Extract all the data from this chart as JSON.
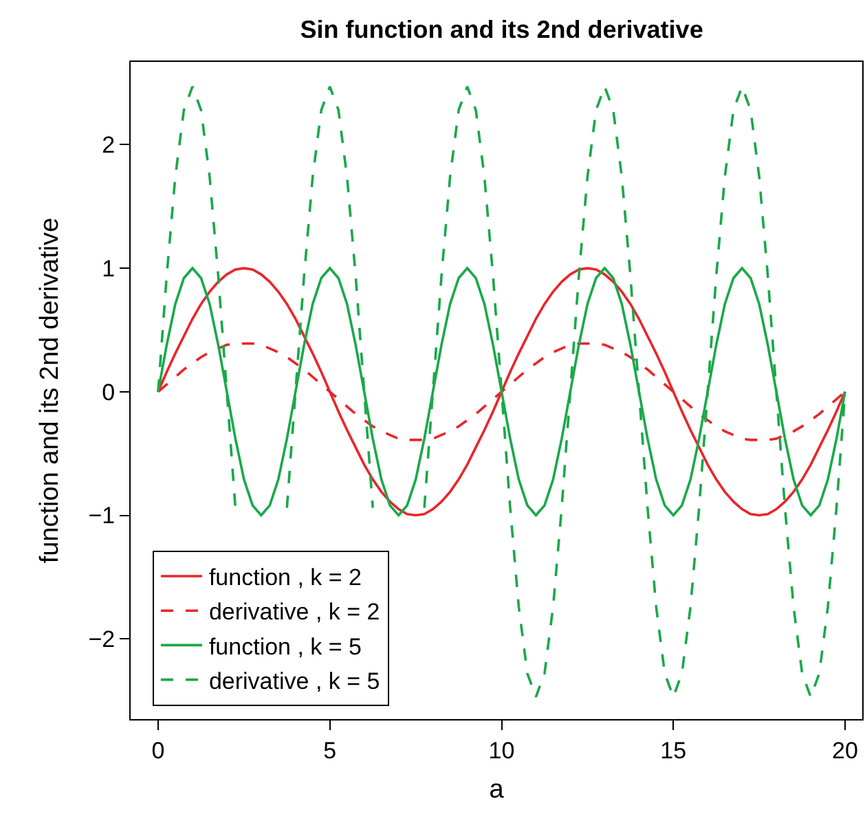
{
  "chart_data": {
    "type": "line",
    "title": "Sin function and its 2nd derivative",
    "xlabel": "a",
    "ylabel": "function and its 2nd derivative",
    "x": [
      0,
      0.25,
      0.5,
      0.75,
      1,
      1.25,
      1.5,
      1.75,
      2,
      2.25,
      2.5,
      2.75,
      3,
      3.25,
      3.5,
      3.75,
      4,
      4.25,
      4.5,
      4.75,
      5,
      5.25,
      5.5,
      5.75,
      6,
      6.25,
      6.5,
      6.75,
      7,
      7.25,
      7.5,
      7.75,
      8,
      8.25,
      8.5,
      8.75,
      9,
      9.25,
      9.5,
      9.75,
      10,
      10.25,
      10.5,
      10.75,
      11,
      11.25,
      11.5,
      11.75,
      12,
      12.25,
      12.5,
      12.75,
      13,
      13.25,
      13.5,
      13.75,
      14,
      14.25,
      14.5,
      14.75,
      15,
      15.25,
      15.5,
      15.75,
      16,
      16.25,
      16.5,
      16.75,
      17,
      17.25,
      17.5,
      17.75,
      18,
      18.25,
      18.5,
      18.75,
      19,
      19.25,
      19.5,
      19.75,
      20
    ],
    "series": [
      {
        "name": "function , k = 2",
        "color": "#e8262a",
        "line_style": "solid",
        "values": [
          0,
          0.16,
          0.31,
          0.45,
          0.59,
          0.71,
          0.81,
          0.89,
          0.95,
          0.99,
          1,
          0.99,
          0.95,
          0.89,
          0.81,
          0.71,
          0.59,
          0.45,
          0.31,
          0.16,
          0,
          -0.16,
          -0.31,
          -0.45,
          -0.59,
          -0.71,
          -0.81,
          -0.89,
          -0.95,
          -0.99,
          -1,
          -0.99,
          -0.95,
          -0.89,
          -0.81,
          -0.71,
          -0.59,
          -0.45,
          -0.31,
          -0.16,
          0,
          0.16,
          0.31,
          0.45,
          0.59,
          0.71,
          0.81,
          0.89,
          0.95,
          0.99,
          1,
          0.99,
          0.95,
          0.89,
          0.81,
          0.71,
          0.59,
          0.45,
          0.31,
          0.16,
          0,
          -0.16,
          -0.31,
          -0.45,
          -0.59,
          -0.71,
          -0.81,
          -0.89,
          -0.95,
          -0.99,
          -1,
          -0.99,
          -0.95,
          -0.89,
          -0.81,
          -0.71,
          -0.59,
          -0.45,
          -0.31,
          -0.16,
          0
        ]
      },
      {
        "name": "derivative , k = 2",
        "color": "#e8262a",
        "line_style": "dashed",
        "values": [
          0,
          0.06,
          0.12,
          0.18,
          0.23,
          0.28,
          0.32,
          0.35,
          0.38,
          0.39,
          0.39,
          0.39,
          0.38,
          0.35,
          0.32,
          0.28,
          0.23,
          0.18,
          0.12,
          0.06,
          0,
          -0.06,
          -0.12,
          -0.18,
          -0.23,
          -0.28,
          -0.32,
          -0.35,
          -0.38,
          -0.39,
          -0.39,
          -0.39,
          -0.38,
          -0.35,
          -0.32,
          -0.28,
          -0.23,
          -0.18,
          -0.12,
          -0.06,
          0,
          0.06,
          0.12,
          0.18,
          0.23,
          0.28,
          0.32,
          0.35,
          0.38,
          0.39,
          0.39,
          0.39,
          0.38,
          0.35,
          0.32,
          0.28,
          0.23,
          0.18,
          0.12,
          0.06,
          0,
          -0.06,
          -0.12,
          -0.18,
          -0.23,
          -0.28,
          -0.32,
          -0.35,
          -0.38,
          -0.39,
          -0.39,
          -0.39,
          -0.38,
          -0.35,
          -0.32,
          -0.28,
          -0.23,
          -0.18,
          -0.12,
          -0.06,
          0
        ]
      },
      {
        "name": "function , k = 5",
        "color": "#1aa84a",
        "line_style": "solid",
        "values": [
          0,
          0.38,
          0.71,
          0.92,
          1,
          0.92,
          0.71,
          0.38,
          0,
          -0.38,
          -0.71,
          -0.92,
          -1,
          -0.92,
          -0.71,
          -0.38,
          0,
          0.38,
          0.71,
          0.92,
          1,
          0.92,
          0.71,
          0.38,
          0,
          -0.38,
          -0.71,
          -0.92,
          -1,
          -0.92,
          -0.71,
          -0.38,
          0,
          0.38,
          0.71,
          0.92,
          1,
          0.92,
          0.71,
          0.38,
          0,
          -0.38,
          -0.71,
          -0.92,
          -1,
          -0.92,
          -0.71,
          -0.38,
          0,
          0.38,
          0.71,
          0.92,
          1,
          0.92,
          0.71,
          0.38,
          0,
          -0.38,
          -0.71,
          -0.92,
          -1,
          -0.92,
          -0.71,
          -0.38,
          0,
          0.38,
          0.71,
          0.92,
          1,
          0.92,
          0.71,
          0.38,
          0,
          -0.38,
          -0.71,
          -0.92,
          -1,
          -0.92,
          -0.71,
          -0.38,
          0
        ]
      },
      {
        "name": "derivative , k = 5",
        "color": "#1aa84a",
        "line_style": "dashed",
        "values": [
          0,
          0.94,
          1.74,
          2.28,
          2.47,
          2.28,
          1.74,
          0.94,
          0,
          -0.94,
          null,
          null,
          null,
          null,
          null,
          -0.94,
          0,
          0.94,
          1.74,
          2.28,
          2.47,
          2.28,
          1.74,
          0.94,
          0,
          -0.94,
          null,
          null,
          null,
          null,
          null,
          -0.94,
          0,
          0.94,
          1.74,
          2.28,
          2.47,
          2.28,
          1.74,
          0.94,
          0,
          -0.94,
          -1.74,
          -2.28,
          -2.47,
          -2.28,
          -1.74,
          -0.94,
          0,
          0.94,
          1.74,
          2.28,
          2.47,
          2.28,
          1.74,
          0.94,
          0,
          -0.94,
          -1.74,
          -2.28,
          -2.47,
          -2.28,
          -1.74,
          -0.94,
          0,
          0.94,
          1.74,
          2.28,
          2.47,
          2.28,
          1.74,
          0.94,
          0,
          -0.94,
          -1.74,
          -2.28,
          -2.47,
          -2.28,
          -1.74,
          -0.94,
          0
        ]
      }
    ],
    "xlim": [
      -0.8,
      20.5
    ],
    "ylim": [
      -2.65,
      2.67
    ],
    "xticks": [
      0,
      5,
      10,
      15,
      20
    ],
    "yticks": [
      -2,
      -1,
      0,
      1,
      2
    ],
    "grid": false,
    "legend": "bottom left",
    "marker": "none"
  }
}
